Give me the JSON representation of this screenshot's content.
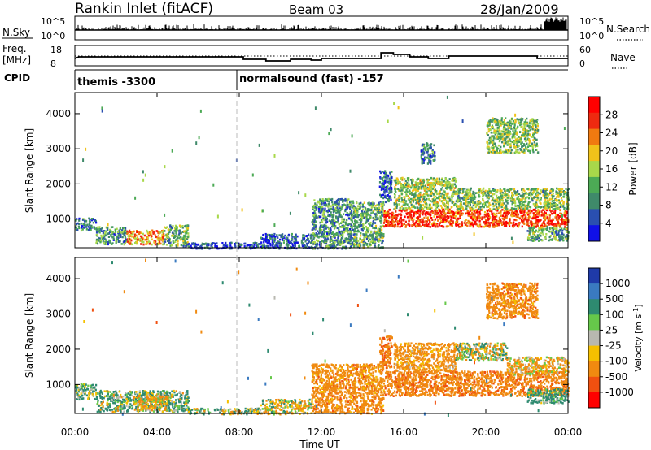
{
  "header": {
    "title": "Rankin Inlet (fitACF)",
    "beam": "Beam 03",
    "date": "28/Jan/2009"
  },
  "summary": {
    "nsky_label": "N.Sky",
    "nsearch_label": "N.Search",
    "freq_label_1": "Freq.",
    "freq_label_2": "[MHz]",
    "nave_label": "Nave",
    "cpid_label": "CPID",
    "count_ticks": [
      "10^5",
      "10^0"
    ],
    "freq_ticks": [
      "18",
      "8"
    ],
    "nave_ticks": [
      "60",
      "0"
    ],
    "cpid_segments": [
      {
        "start_hour": 0,
        "end_hour": 8,
        "label": "themis -3300"
      },
      {
        "start_hour": 8,
        "end_hour": 24,
        "label": "normalsound (fast) -157"
      }
    ]
  },
  "colors": {
    "power": [
      "#1010e8",
      "#2a4fb0",
      "#3f8a6a",
      "#4caa55",
      "#a8d84a",
      "#f0c21a",
      "#f07a10",
      "#ee2a10",
      "#ff0000"
    ],
    "velocity": [
      "#1f3aa8",
      "#3a7ac0",
      "#2e8a70",
      "#66c84a",
      "#b8b8b0",
      "#f5c000",
      "#f08a10",
      "#f05010",
      "#ff0000"
    ]
  },
  "chart_data": [
    {
      "type": "heatmap",
      "title": "",
      "ylabel": "Slant Range [km]",
      "xlabel": "",
      "ylim": [
        180,
        4600
      ],
      "yticks": [
        "1000",
        "2000",
        "3000",
        "4000"
      ],
      "colorbar": {
        "label": "Power [dB]",
        "ticks": [
          "4",
          "8",
          "12",
          "16",
          "20",
          "24",
          "28"
        ],
        "range": [
          0,
          32
        ]
      },
      "regions": [
        {
          "start_hour": 0.0,
          "end_hour": 1.0,
          "range_min": 700,
          "range_max": 1050,
          "value": 8
        },
        {
          "start_hour": 1.0,
          "end_hour": 2.5,
          "range_min": 300,
          "range_max": 800,
          "value": 10
        },
        {
          "start_hour": 2.5,
          "end_hour": 4.3,
          "range_min": 300,
          "range_max": 700,
          "value": 22
        },
        {
          "start_hour": 4.3,
          "end_hour": 5.5,
          "range_min": 250,
          "range_max": 850,
          "value": 12
        },
        {
          "start_hour": 5.5,
          "end_hour": 9.0,
          "range_min": 180,
          "range_max": 350,
          "value": 5
        },
        {
          "start_hour": 9.0,
          "end_hour": 11.5,
          "range_min": 180,
          "range_max": 600,
          "value": 6
        },
        {
          "start_hour": 11.5,
          "end_hour": 13.5,
          "range_min": 180,
          "range_max": 1600,
          "value": 10
        },
        {
          "start_hour": 13.5,
          "end_hour": 15.0,
          "range_min": 200,
          "range_max": 1500,
          "value": 12
        },
        {
          "start_hour": 14.8,
          "end_hour": 15.4,
          "range_min": 1500,
          "range_max": 2400,
          "value": 7
        },
        {
          "start_hour": 15.0,
          "end_hour": 24.0,
          "range_min": 800,
          "range_max": 1300,
          "value": 27
        },
        {
          "start_hour": 15.5,
          "end_hour": 18.5,
          "range_min": 1300,
          "range_max": 2200,
          "value": 15
        },
        {
          "start_hour": 18.5,
          "end_hour": 24.0,
          "range_min": 1300,
          "range_max": 1900,
          "value": 14
        },
        {
          "start_hour": 16.8,
          "end_hour": 17.5,
          "range_min": 2600,
          "range_max": 3200,
          "value": 9
        },
        {
          "start_hour": 20.0,
          "end_hour": 22.5,
          "range_min": 2900,
          "range_max": 3900,
          "value": 14
        },
        {
          "start_hour": 22.0,
          "end_hour": 24.0,
          "range_min": 400,
          "range_max": 800,
          "value": 12
        }
      ]
    },
    {
      "type": "heatmap",
      "title": "",
      "ylabel": "Slant Range [km]",
      "xlabel": "Time UT",
      "ylim": [
        180,
        4600
      ],
      "yticks": [
        "1000",
        "2000",
        "3000",
        "4000"
      ],
      "xticks": [
        "00:00",
        "04:00",
        "08:00",
        "12:00",
        "16:00",
        "20:00",
        "00:00"
      ],
      "colorbar": {
        "label": "Velocity [m s^-1]",
        "ticks": [
          "1000",
          "500",
          "100",
          "25",
          "-25",
          "-100",
          "-500",
          "-1000"
        ],
        "range": [
          -1250,
          1250
        ]
      },
      "regions": [
        {
          "start_hour": 0.0,
          "end_hour": 1.0,
          "range_min": 600,
          "range_max": 1050,
          "value": 150
        },
        {
          "start_hour": 1.0,
          "end_hour": 5.5,
          "range_min": 250,
          "range_max": 850,
          "value": 120
        },
        {
          "start_hour": 3.0,
          "end_hour": 4.5,
          "range_min": 300,
          "range_max": 700,
          "value": -150
        },
        {
          "start_hour": 5.5,
          "end_hour": 9.0,
          "range_min": 180,
          "range_max": 350,
          "value": 80
        },
        {
          "start_hour": 9.0,
          "end_hour": 11.5,
          "range_min": 180,
          "range_max": 600,
          "value": -80
        },
        {
          "start_hour": 11.5,
          "end_hour": 15.0,
          "range_min": 200,
          "range_max": 1600,
          "value": -300
        },
        {
          "start_hour": 14.8,
          "end_hour": 15.4,
          "range_min": 1500,
          "range_max": 2400,
          "value": -400
        },
        {
          "start_hour": 15.0,
          "end_hour": 24.0,
          "range_min": 700,
          "range_max": 1400,
          "value": -350
        },
        {
          "start_hour": 15.5,
          "end_hour": 18.5,
          "range_min": 1400,
          "range_max": 2200,
          "value": -250
        },
        {
          "start_hour": 18.5,
          "end_hour": 21.0,
          "range_min": 1700,
          "range_max": 2200,
          "value": 0
        },
        {
          "start_hour": 21.0,
          "end_hour": 24.0,
          "range_min": 1300,
          "range_max": 1800,
          "value": -150
        },
        {
          "start_hour": 20.0,
          "end_hour": 22.5,
          "range_min": 2900,
          "range_max": 3900,
          "value": -300
        },
        {
          "start_hour": 22.0,
          "end_hour": 24.0,
          "range_min": 500,
          "range_max": 900,
          "value": 200
        }
      ]
    }
  ]
}
